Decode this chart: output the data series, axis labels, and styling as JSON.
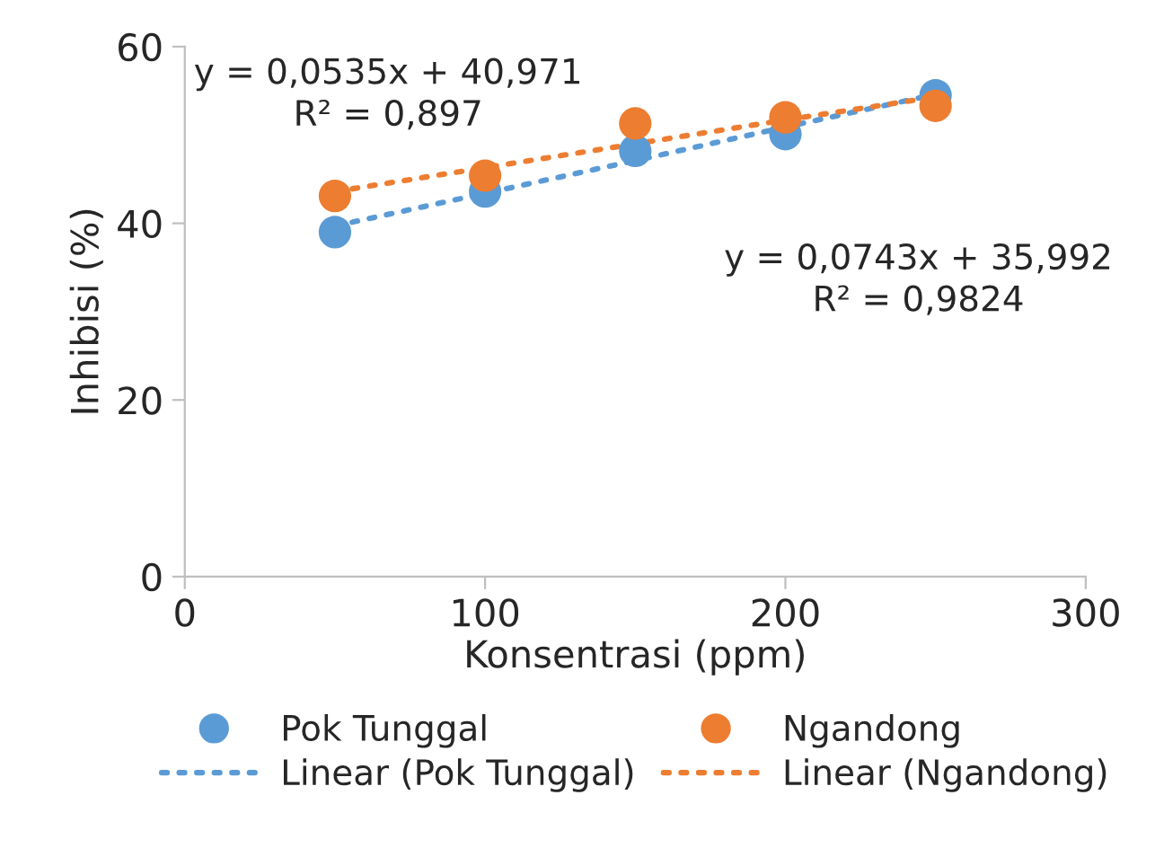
{
  "chart_data": {
    "type": "scatter",
    "xlabel": "Konsentrasi (ppm)",
    "ylabel": "Inhibisi (%)",
    "x": [
      50,
      100,
      150,
      200,
      250
    ],
    "series": [
      {
        "name": "Pok Tunggal",
        "color": "#5b9bd5",
        "values": [
          39.0,
          43.6,
          48.2,
          50.1,
          54.5
        ],
        "marker": "circle"
      },
      {
        "name": "Ngandong",
        "color": "#ed7d31",
        "values": [
          43.1,
          45.4,
          51.3,
          52.0,
          53.3
        ],
        "marker": "circle"
      },
      {
        "name": "Linear (Pok Tunggal)",
        "type": "line",
        "color": "#5b9bd5",
        "values": [
          39.7,
          43.4,
          47.1,
          50.9,
          54.6
        ],
        "line_style": "dotted",
        "marker": "none"
      },
      {
        "name": "Linear (Ngandong)",
        "type": "line",
        "color": "#ed7d31",
        "values": [
          43.6,
          46.3,
          49.0,
          51.7,
          54.3
        ],
        "line_style": "dotted",
        "marker": "none"
      }
    ],
    "xlim": [
      0,
      300
    ],
    "xticks": [
      0,
      100,
      200,
      300
    ],
    "ylim": [
      0,
      60
    ],
    "yticks": [
      0,
      20,
      40,
      60
    ],
    "grid": false,
    "legend": "bottom",
    "annotations": [
      "y = 0,0535x + 40,971\nR² = 0,897",
      "y = 0,0743x + 35,992\nR² = 0,9824"
    ]
  }
}
